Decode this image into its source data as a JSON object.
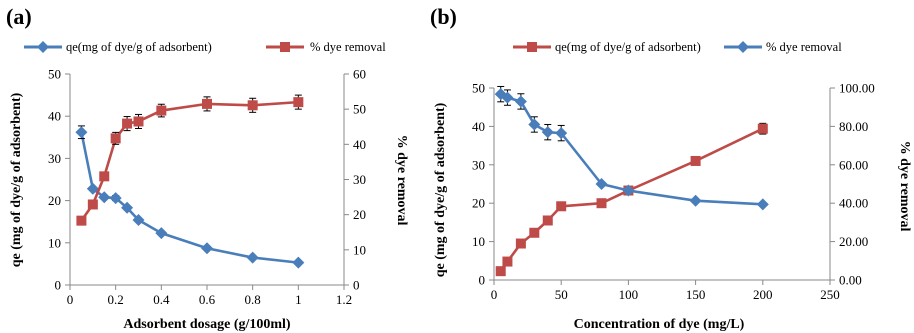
{
  "chart_data": [
    {
      "type": "line",
      "panel_label": "(a)",
      "xlabel": "Adsorbent dosage (g/100ml)",
      "ylabel_left": "qe (mg of dye/g  of adsorbent)",
      "ylabel_right": "% dye removal",
      "xlim": [
        0,
        1.2
      ],
      "xticks": [
        0,
        0.2,
        0.4,
        0.6,
        0.8,
        1,
        1.2
      ],
      "xtick_labels": [
        "0",
        "0.2",
        "0.4",
        "0.6",
        "0.8",
        "1",
        "1.2"
      ],
      "ylim_left": [
        0,
        50
      ],
      "yticks_left": [
        0,
        10,
        20,
        30,
        40,
        50
      ],
      "ytick_labels_left": [
        "0",
        "10",
        "20",
        "30",
        "40",
        "50"
      ],
      "ylim_right": [
        0,
        60
      ],
      "yticks_right": [
        0,
        10,
        20,
        30,
        40,
        50,
        60
      ],
      "ytick_labels_right": [
        "0",
        "10",
        "20",
        "30",
        "40",
        "50",
        "60"
      ],
      "grid": false,
      "legend_position": "top",
      "series": [
        {
          "name": "qe(mg of dye/g of adsorbent)",
          "axis": "left",
          "color": "#4a7ebb",
          "marker": "diamond",
          "x": [
            0.05,
            0.1,
            0.15,
            0.2,
            0.25,
            0.3,
            0.4,
            0.6,
            0.8,
            1.0
          ],
          "y": [
            36.2,
            22.8,
            20.8,
            20.6,
            18.3,
            15.4,
            12.3,
            8.7,
            6.5,
            5.3
          ],
          "error": [
            1.5,
            0,
            0,
            0.6,
            0,
            0,
            0,
            0,
            0,
            0
          ]
        },
        {
          "name": "% dye removal",
          "axis": "right",
          "color": "#be4b48",
          "marker": "square",
          "x": [
            0.05,
            0.1,
            0.15,
            0.2,
            0.25,
            0.3,
            0.4,
            0.6,
            0.8,
            1.0
          ],
          "y": [
            18.3,
            22.9,
            30.9,
            41.7,
            45.9,
            46.5,
            49.6,
            51.5,
            51.1,
            52.0
          ],
          "error": [
            0,
            0,
            0,
            1.7,
            2.0,
            2.0,
            1.8,
            2.0,
            2.0,
            2.0
          ]
        }
      ]
    },
    {
      "type": "line",
      "panel_label": "(b)",
      "xlabel": "Concentration of dye (mg/L)",
      "ylabel_left": "qe (mg of dye/g of adsorbent)",
      "ylabel_right": "% dye removal",
      "xlim": [
        0,
        250
      ],
      "xticks": [
        0,
        50,
        100,
        150,
        200,
        250
      ],
      "xtick_labels": [
        "0",
        "50",
        "100",
        "150",
        "200",
        "250"
      ],
      "ylim_left": [
        0,
        50
      ],
      "yticks_left": [
        0,
        10,
        20,
        30,
        40,
        50
      ],
      "ytick_labels_left": [
        "0",
        "10",
        "20",
        "30",
        "40",
        "50"
      ],
      "ylim_right": [
        0,
        100
      ],
      "yticks_right": [
        0,
        20,
        40,
        60,
        80,
        100
      ],
      "ytick_labels_right": [
        "0.00",
        "20.00",
        "40.00",
        "60.00",
        "80.00",
        "100.00"
      ],
      "grid": false,
      "legend_position": "top",
      "series": [
        {
          "name": "qe(mg of dye/g of adsorbent)",
          "axis": "left",
          "color": "#be4b48",
          "marker": "square",
          "x": [
            5,
            10,
            20,
            30,
            40,
            50,
            80,
            100,
            150,
            200
          ],
          "y": [
            2.3,
            4.8,
            9.5,
            12.3,
            15.5,
            19.2,
            20.0,
            23.3,
            31.0,
            39.4
          ],
          "error": [
            0,
            0,
            0,
            0,
            0,
            0,
            0,
            0,
            0,
            1.4
          ]
        },
        {
          "name": "% dye removal",
          "axis": "right",
          "color": "#4a7ebb",
          "marker": "diamond",
          "x": [
            5,
            10,
            20,
            30,
            40,
            50,
            80,
            100,
            150,
            200
          ],
          "y": [
            96.8,
            95.0,
            93.0,
            81.0,
            77.0,
            76.5,
            50.0,
            46.6,
            41.3,
            39.4
          ],
          "error": [
            4.0,
            4.0,
            4.0,
            4.0,
            4.0,
            4.0,
            0,
            0,
            0,
            0
          ]
        }
      ]
    }
  ]
}
